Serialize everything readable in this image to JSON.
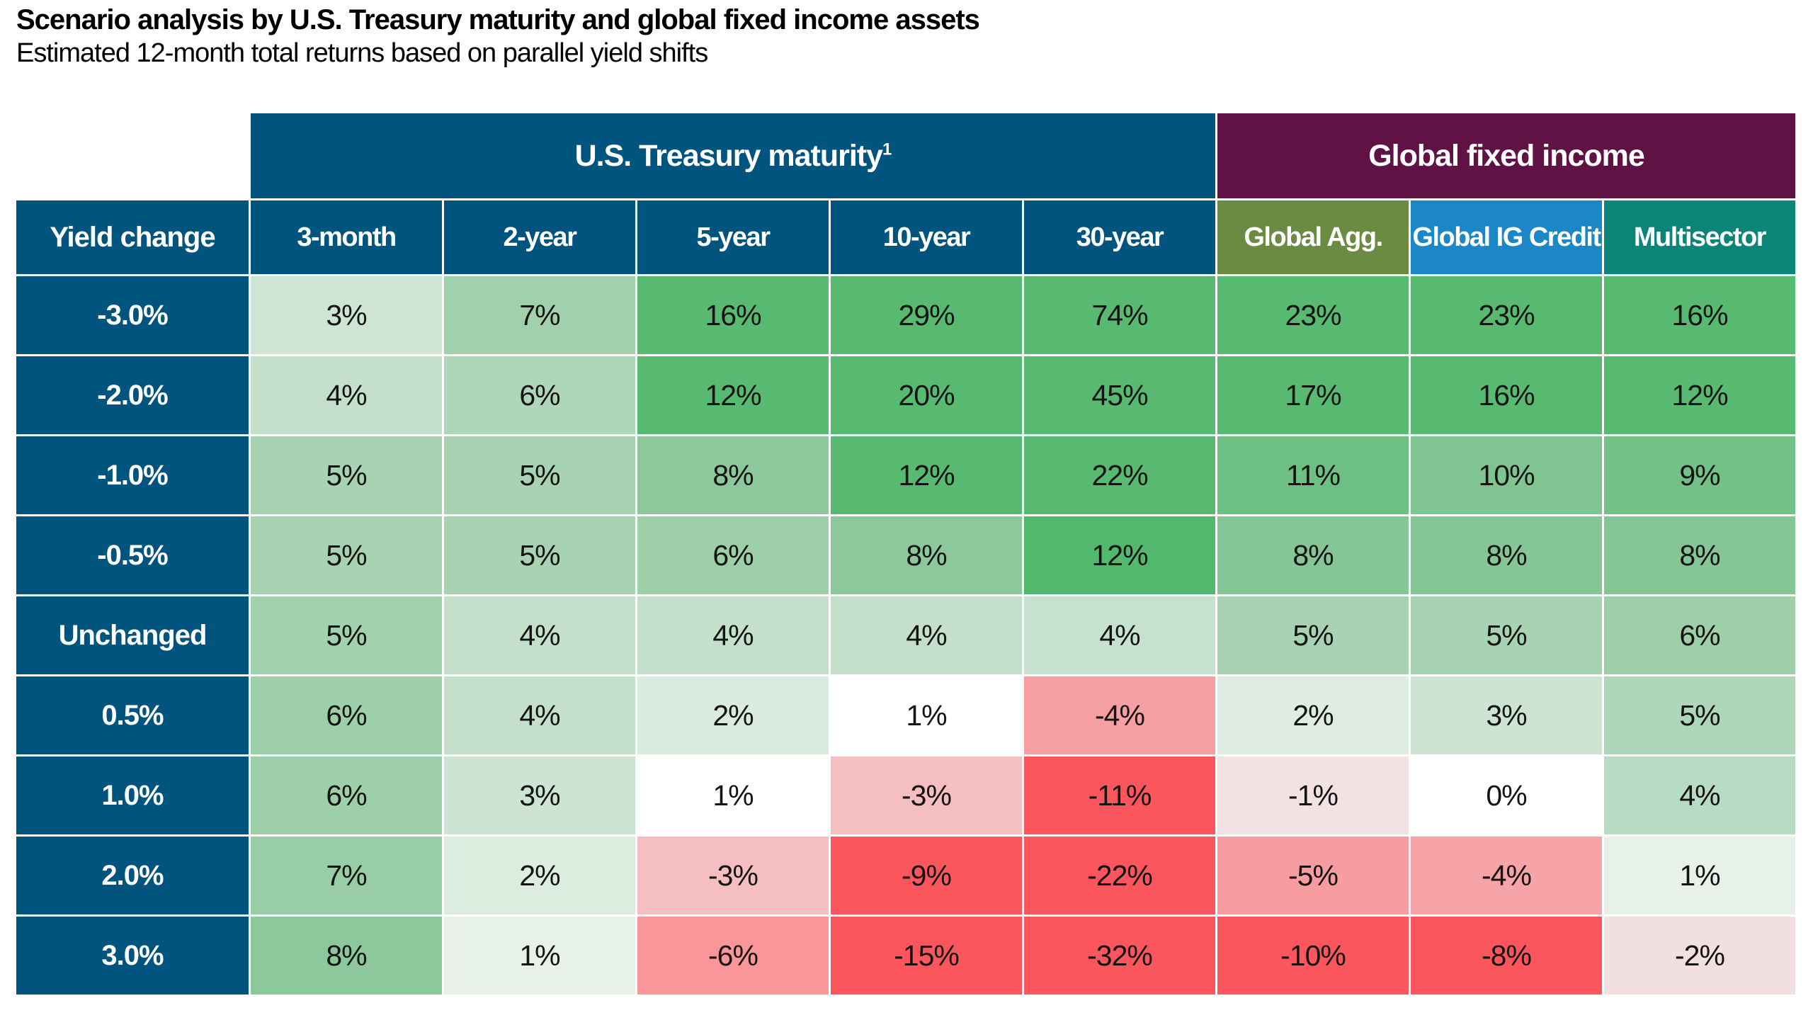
{
  "header": {
    "title": "Scenario analysis by U.S. Treasury maturity and global fixed income assets",
    "subtitle": "Estimated 12-month total returns based on parallel yield shifts"
  },
  "palette": {
    "table_header_blue": "#00547e",
    "global_group_maroon": "#5f1243",
    "global_agg_olive": "#6a8b41",
    "global_ig_blue": "#1b87c6",
    "multisector_teal": "#0a8577",
    "positive_strong_green": "#57ba70",
    "negative_strong_red": "#fb565d",
    "neutral_white": "#ffffff",
    "grid_line": "#ffffff"
  },
  "chart_data": {
    "type": "heatmap",
    "title": "Scenario analysis by U.S. Treasury maturity and global fixed income assets",
    "subtitle": "Estimated 12-month total returns based on parallel yield shifts",
    "unit": "%",
    "row_header_label": "Yield change",
    "row_header_color": "#00547e",
    "column_groups": [
      {
        "label": "U.S. Treasury maturity",
        "footnote_marker": "1",
        "span": 5,
        "color": "#00547e"
      },
      {
        "label": "Global fixed income",
        "footnote_marker": "",
        "span": 3,
        "color": "#5f1243"
      }
    ],
    "columns": [
      {
        "label": "3-month",
        "header_color": "#00547e"
      },
      {
        "label": "2-year",
        "header_color": "#00547e"
      },
      {
        "label": "5-year",
        "header_color": "#00547e"
      },
      {
        "label": "10-year",
        "header_color": "#00547e"
      },
      {
        "label": "30-year",
        "header_color": "#00547e"
      },
      {
        "label": "Global Agg.",
        "header_color": "#6a8b41"
      },
      {
        "label": "Global IG Credit",
        "header_color": "#1b87c6"
      },
      {
        "label": "Multisector",
        "header_color": "#0a8577"
      }
    ],
    "rows": [
      {
        "label": "-3.0%",
        "label_color": "#00547e",
        "values": [
          3,
          7,
          16,
          29,
          74,
          23,
          23,
          16
        ],
        "display": [
          "3%",
          "7%",
          "16%",
          "29%",
          "74%",
          "23%",
          "23%",
          "16%"
        ],
        "cell_colors": [
          "#cfe5d4",
          "#a0d1ac",
          "#57ba70",
          "#57ba70",
          "#57ba70",
          "#57ba70",
          "#57ba70",
          "#57ba70"
        ]
      },
      {
        "label": "-2.0%",
        "label_color": "#00547e",
        "values": [
          4,
          6,
          12,
          20,
          45,
          17,
          16,
          12
        ],
        "display": [
          "4%",
          "6%",
          "12%",
          "20%",
          "45%",
          "17%",
          "16%",
          "12%"
        ],
        "cell_colors": [
          "#c4e0cb",
          "#aed6b8",
          "#57ba70",
          "#57ba70",
          "#57ba70",
          "#57ba70",
          "#57ba70",
          "#57ba70"
        ]
      },
      {
        "label": "-1.0%",
        "label_color": "#00547e",
        "values": [
          5,
          5,
          8,
          12,
          22,
          11,
          10,
          9
        ],
        "display": [
          "5%",
          "5%",
          "8%",
          "12%",
          "22%",
          "11%",
          "10%",
          "9%"
        ],
        "cell_colors": [
          "#a8d3b2",
          "#a8d3b2",
          "#8cc89c",
          "#57ba70",
          "#57ba70",
          "#6ebf83",
          "#80c492",
          "#74c187"
        ]
      },
      {
        "label": "-0.5%",
        "label_color": "#00547e",
        "values": [
          5,
          5,
          6,
          8,
          12,
          8,
          8,
          8
        ],
        "display": [
          "5%",
          "5%",
          "6%",
          "8%",
          "12%",
          "8%",
          "8%",
          "8%"
        ],
        "cell_colors": [
          "#a8d3b2",
          "#a8d3b2",
          "#9dcfa9",
          "#8cc89c",
          "#52b86d",
          "#86c696",
          "#86c696",
          "#86c696"
        ]
      },
      {
        "label": "Unchanged",
        "label_color": "#00547e",
        "values": [
          5,
          4,
          4,
          4,
          4,
          5,
          5,
          6
        ],
        "display": [
          "5%",
          "4%",
          "4%",
          "4%",
          "4%",
          "5%",
          "5%",
          "6%"
        ],
        "cell_colors": [
          "#a2d1ad",
          "#c4e0cb",
          "#c4e0cb",
          "#c4e0cb",
          "#c6e1cd",
          "#a8d3b2",
          "#a8d3b2",
          "#9dcfa9"
        ]
      },
      {
        "label": "0.5%",
        "label_color": "#00547e",
        "values": [
          6,
          4,
          2,
          1,
          -4,
          2,
          3,
          5
        ],
        "display": [
          "6%",
          "4%",
          "2%",
          "1%",
          "-4%",
          "2%",
          "3%",
          "5%"
        ],
        "cell_colors": [
          "#9dcfa9",
          "#c4e0cb",
          "#d9ebde",
          "#ffffff",
          "#f7a0a4",
          "#deece1",
          "#cde4d3",
          "#aed6b8"
        ]
      },
      {
        "label": "1.0%",
        "label_color": "#00547e",
        "values": [
          6,
          3,
          1,
          -3,
          -11,
          -1,
          0,
          4
        ],
        "display": [
          "6%",
          "3%",
          "1%",
          "-3%",
          "-11%",
          "-1%",
          "0%",
          "4%"
        ],
        "cell_colors": [
          "#9dcfa9",
          "#cde4d3",
          "#ffffff",
          "#f5bfc2",
          "#fb565d",
          "#f2e2e3",
          "#ffffff",
          "#b8dcc3"
        ]
      },
      {
        "label": "2.0%",
        "label_color": "#00547e",
        "values": [
          7,
          2,
          -3,
          -9,
          -22,
          -5,
          -4,
          1
        ],
        "display": [
          "7%",
          "2%",
          "-3%",
          "-9%",
          "-22%",
          "-5%",
          "-4%",
          "1%"
        ],
        "cell_colors": [
          "#98cda5",
          "#dcecdf",
          "#f5bfc2",
          "#fb565d",
          "#fb565d",
          "#f79da1",
          "#f7a4a8",
          "#e7f0e9"
        ]
      },
      {
        "label": "3.0%",
        "label_color": "#00547e",
        "values": [
          8,
          1,
          -6,
          -15,
          -32,
          -10,
          -8,
          -2
        ],
        "display": [
          "8%",
          "1%",
          "-6%",
          "-15%",
          "-32%",
          "-10%",
          "-8%",
          "-2%"
        ],
        "cell_colors": [
          "#8cc89c",
          "#e7f0e9",
          "#f8969a",
          "#fb565d",
          "#fb565d",
          "#fb565d",
          "#fb565d",
          "#f2dfe1"
        ]
      }
    ],
    "legend_position": "none",
    "grid": true
  }
}
